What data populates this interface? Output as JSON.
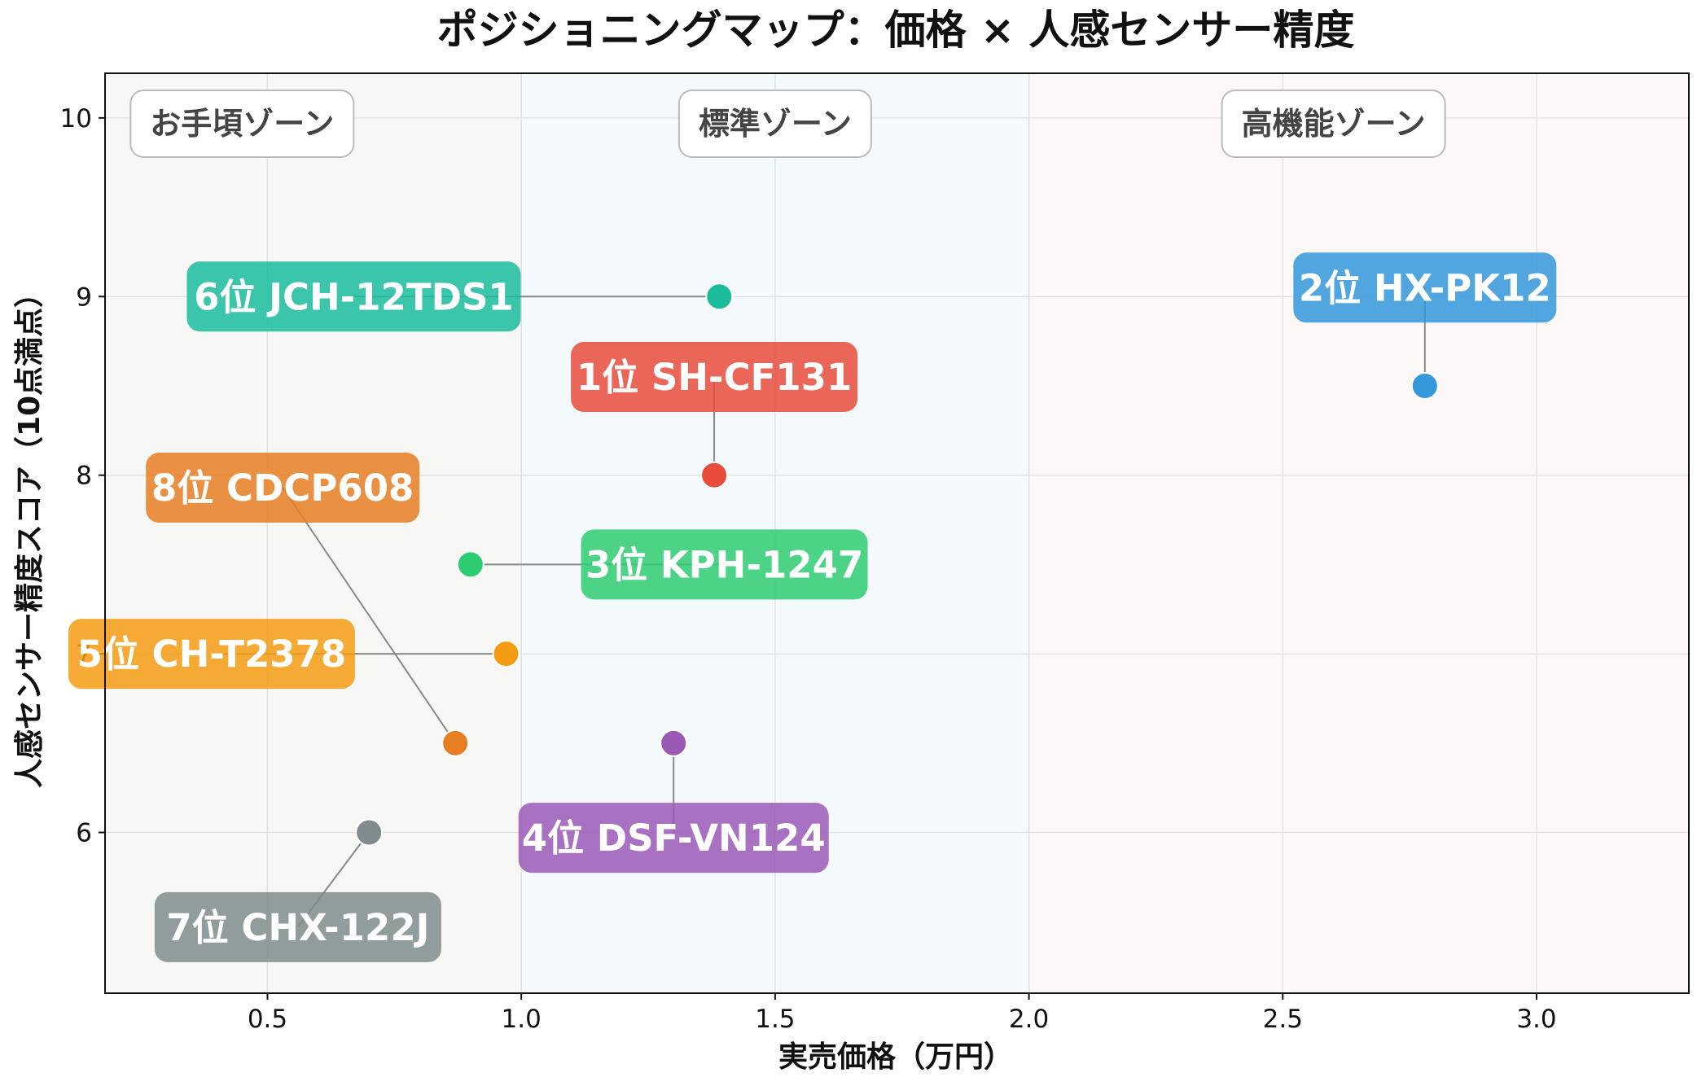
{
  "chart_data": {
    "type": "scatter",
    "title": "ポジショニングマップ：価格 × 人感センサー精度",
    "xlabel": "実売価格（万円）",
    "ylabel": "人感センサー精度スコア（10点満点）",
    "xlim": [
      0.18,
      3.3
    ],
    "ylim": [
      5.1,
      10.25
    ],
    "xticks": [
      0.5,
      1.0,
      1.5,
      2.0,
      2.5,
      3.0
    ],
    "xtick_labels": [
      "0.5",
      "1.0",
      "1.5",
      "2.0",
      "2.5",
      "3.0"
    ],
    "yticks": [
      6,
      7,
      8,
      9,
      10
    ],
    "ytick_labels": [
      "6",
      "7",
      "8",
      "9",
      "10"
    ],
    "grid": true,
    "zones": [
      {
        "label": "お手頃ゾーン",
        "x_from": 0.18,
        "x_to": 1.0,
        "color": "#f7f8f5",
        "label_x": 0.45
      },
      {
        "label": "標準ゾーン",
        "x_from": 1.0,
        "x_to": 2.0,
        "color": "#f4f9fc",
        "label_x": 1.5
      },
      {
        "label": "高機能ゾーン",
        "x_from": 2.0,
        "x_to": 3.3,
        "color": "#fdf8f8",
        "label_x": 2.6
      }
    ],
    "points": [
      {
        "label": "1位 SH-CF131",
        "x": 1.38,
        "y": 8.0,
        "color": "#e74c3c",
        "label_x": 1.38,
        "label_y": 8.55
      },
      {
        "label": "2位 HX-PK12",
        "x": 2.78,
        "y": 8.5,
        "color": "#3498db",
        "label_x": 2.78,
        "label_y": 9.05
      },
      {
        "label": "3位 KPH-1247",
        "x": 0.9,
        "y": 7.5,
        "color": "#2ecc71",
        "label_x": 1.4,
        "label_y": 7.5
      },
      {
        "label": "4位 DSF-VN124",
        "x": 1.3,
        "y": 6.5,
        "color": "#9b59b6",
        "label_x": 1.3,
        "label_y": 5.97
      },
      {
        "label": "5位 CH-T2378",
        "x": 0.97,
        "y": 7.0,
        "color": "#f39c12",
        "label_x": 0.39,
        "label_y": 7.0
      },
      {
        "label": "6位 JCH-12TDS1",
        "x": 1.39,
        "y": 9.0,
        "color": "#1abc9c",
        "label_x": 0.67,
        "label_y": 9.0
      },
      {
        "label": "7位 CHX-122J",
        "x": 0.7,
        "y": 6.0,
        "color": "#7f8c8d",
        "label_x": 0.56,
        "label_y": 5.47
      },
      {
        "label": "8位 CDCP608",
        "x": 0.87,
        "y": 6.5,
        "color": "#e67e22",
        "label_x": 0.53,
        "label_y": 7.93
      }
    ]
  }
}
